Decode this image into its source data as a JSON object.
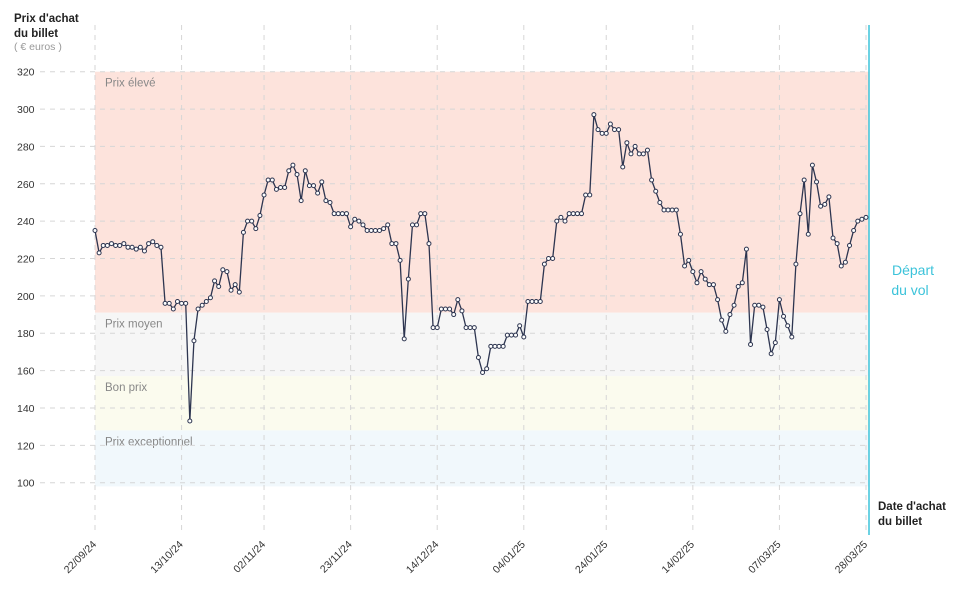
{
  "chart_data": {
    "type": "line",
    "y_label_line1": "Prix d'achat",
    "y_label_line2": "du billet",
    "y_unit": "( € euros )",
    "x_label_line1": "Date d'achat",
    "x_label_line2": "du billet",
    "departure_line1": "Départ",
    "departure_line2": "du vol",
    "bands": [
      {
        "name": "Prix élevé",
        "from": 191,
        "to": 320,
        "color": "#fde3dc"
      },
      {
        "name": "Prix moyen",
        "from": 157,
        "to": 191,
        "color": "#f6f6f6"
      },
      {
        "name": "Bon prix",
        "from": 128,
        "to": 157,
        "color": "#fbfbee"
      },
      {
        "name": "Prix exceptionnel",
        "from": 98,
        "to": 128,
        "color": "#f1f8fc"
      }
    ],
    "ylim": [
      72,
      345
    ],
    "yticks": [
      100,
      120,
      140,
      160,
      180,
      200,
      220,
      240,
      260,
      280,
      300,
      320
    ],
    "grid": true,
    "categories": [
      "22/09/24",
      null,
      null,
      null,
      null,
      null,
      null,
      null,
      null,
      null,
      null,
      null,
      null,
      null,
      null,
      null,
      null,
      null,
      null,
      null,
      null,
      "13/10/24",
      null,
      null,
      null,
      null,
      null,
      null,
      null,
      null,
      null,
      null,
      null,
      null,
      null,
      null,
      null,
      null,
      null,
      null,
      null,
      "02/11/24",
      null,
      null,
      null,
      null,
      null,
      null,
      null,
      null,
      null,
      null,
      null,
      null,
      null,
      null,
      null,
      null,
      null,
      null,
      null,
      null,
      "23/11/24",
      null,
      null,
      null,
      null,
      null,
      null,
      null,
      null,
      null,
      null,
      null,
      null,
      null,
      null,
      null,
      null,
      null,
      null,
      null,
      null,
      "14/12/24",
      null,
      null,
      null,
      null,
      null,
      null,
      null,
      null,
      null,
      null,
      null,
      null,
      null,
      null,
      null,
      null,
      null,
      null,
      null,
      null,
      "04/01/25",
      null,
      null,
      null,
      null,
      null,
      null,
      null,
      null,
      null,
      null,
      null,
      null,
      null,
      null,
      null,
      null,
      null,
      null,
      null,
      "24/01/25",
      null,
      null,
      null,
      null,
      null,
      null,
      null,
      null,
      null,
      null,
      null,
      null,
      null,
      null,
      null,
      null,
      null,
      null,
      null,
      null,
      "14/02/25",
      null,
      null,
      null,
      null,
      null,
      null,
      null,
      null,
      null,
      null,
      null,
      null,
      null,
      null,
      null,
      null,
      null,
      null,
      null,
      null,
      "07/03/25",
      null,
      null,
      null,
      null,
      null,
      null,
      null,
      null,
      null,
      null,
      null,
      null,
      null,
      null,
      null,
      null,
      null,
      null,
      null,
      null,
      "28/03/25"
    ],
    "series": [
      {
        "name": "Prix",
        "color": "#2d3550",
        "values": [
          235,
          223,
          227,
          227,
          228,
          227,
          227,
          228,
          226,
          226,
          225,
          226,
          224,
          228,
          229,
          227,
          226,
          196,
          196,
          193,
          197,
          196,
          196,
          133,
          176,
          193,
          195,
          197,
          199,
          208,
          205,
          214,
          213,
          203,
          206,
          202,
          234,
          240,
          240,
          236,
          243,
          254,
          262,
          262,
          257,
          258,
          258,
          267,
          270,
          265,
          251,
          267,
          259,
          259,
          255,
          261,
          251,
          250,
          244,
          244,
          244,
          244,
          237,
          241,
          240,
          238,
          235,
          235,
          235,
          235,
          236,
          238,
          228,
          228,
          219,
          177,
          209,
          238,
          238,
          244,
          244,
          228,
          183,
          183,
          193,
          193,
          193,
          190,
          198,
          192,
          183,
          183,
          183,
          167,
          159,
          161,
          173,
          173,
          173,
          173,
          179,
          179,
          179,
          184,
          178,
          197,
          197,
          197,
          197,
          217,
          220,
          220,
          240,
          242,
          240,
          244,
          244,
          244,
          244,
          254,
          254,
          297,
          289,
          287,
          287,
          292,
          289,
          289,
          269,
          282,
          276,
          280,
          276,
          276,
          278,
          262,
          256,
          250,
          246,
          246,
          246,
          246,
          233,
          216,
          219,
          213,
          207,
          213,
          209,
          206,
          206,
          198,
          187,
          181,
          190,
          195,
          205,
          207,
          225,
          174,
          195,
          195,
          194,
          182,
          169,
          175,
          198,
          189,
          184,
          178,
          217,
          244,
          262,
          233,
          270,
          261,
          248,
          249,
          253,
          231,
          228,
          216,
          218,
          227,
          235,
          240,
          241,
          242
        ]
      }
    ]
  }
}
